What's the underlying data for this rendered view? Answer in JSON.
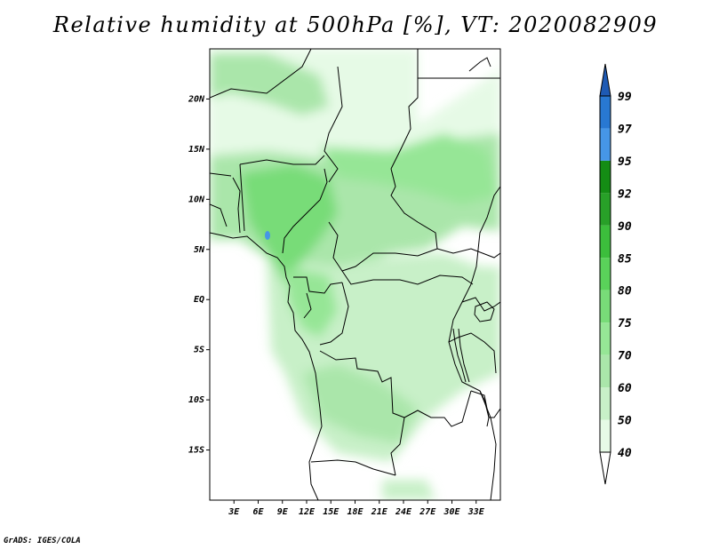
{
  "title": "Relative humidity at 500hPa [%], VT: 2020082909",
  "credit": "GrADS: IGES/COLA",
  "map": {
    "lon_range": [
      0,
      36
    ],
    "lat_range": [
      -20,
      25
    ],
    "lat_ticks": [
      {
        "value": 20,
        "label": "20N"
      },
      {
        "value": 15,
        "label": "15N"
      },
      {
        "value": 10,
        "label": "10N"
      },
      {
        "value": 5,
        "label": "5N"
      },
      {
        "value": 0,
        "label": "EQ"
      },
      {
        "value": -5,
        "label": "5S"
      },
      {
        "value": -10,
        "label": "10S"
      },
      {
        "value": -15,
        "label": "15S"
      }
    ],
    "lon_ticks": [
      {
        "value": 3,
        "label": "3E"
      },
      {
        "value": 6,
        "label": "6E"
      },
      {
        "value": 9,
        "label": "9E"
      },
      {
        "value": 12,
        "label": "12E"
      },
      {
        "value": 15,
        "label": "15E"
      },
      {
        "value": 18,
        "label": "18E"
      },
      {
        "value": 21,
        "label": "21E"
      },
      {
        "value": 24,
        "label": "24E"
      },
      {
        "value": 27,
        "label": "27E"
      },
      {
        "value": 30,
        "label": "30E"
      },
      {
        "value": 33,
        "label": "33E"
      }
    ]
  },
  "colorbar": {
    "levels": [
      "40",
      "50",
      "60",
      "70",
      "75",
      "80",
      "85",
      "90",
      "92",
      "95",
      "97",
      "99"
    ],
    "colors": [
      "#e6fae6",
      "#c8f0c8",
      "#aae6aa",
      "#96e696",
      "#78dc78",
      "#5ad25a",
      "#3cbe3c",
      "#28a028",
      "#148c14",
      "#4696e6",
      "#2878d2",
      "#1e5ab4"
    ]
  },
  "humidity_colors": {
    "c40": "#e6fae6",
    "c50": "#c8f0c8",
    "c60": "#aae6aa",
    "c70": "#96e696",
    "c75": "#78dc78",
    "c80": "#5ad25a",
    "c85": "#3cbe3c",
    "c95": "#4696e6"
  }
}
